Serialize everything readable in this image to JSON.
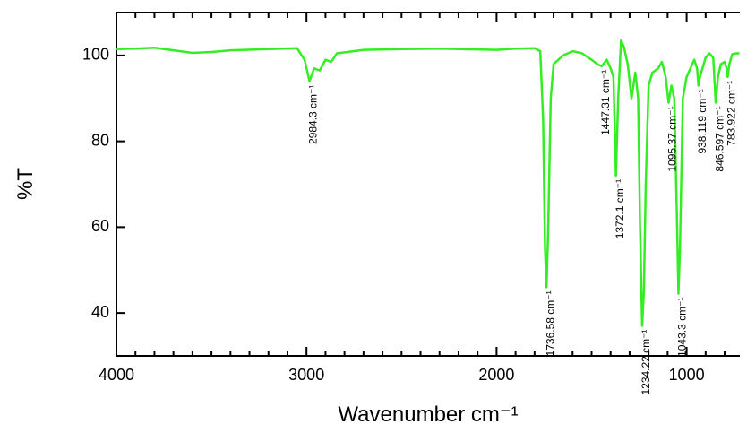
{
  "chart_data": {
    "type": "line",
    "xlabel": "Wavenumber cm⁻¹",
    "ylabel": "%T",
    "xlim": [
      4000,
      720
    ],
    "ylim": [
      30,
      110
    ],
    "xticks": [
      4000,
      3000,
      2000,
      1000
    ],
    "xminorticks": [
      3900,
      3800,
      3700,
      3600,
      3500,
      3400,
      3300,
      3200,
      3100,
      2900,
      2800,
      2700,
      2600,
      2500,
      2400,
      2300,
      2200,
      2100,
      1900,
      1800,
      1700,
      1600,
      1500,
      1400,
      1300,
      1200,
      1100,
      900,
      800
    ],
    "yticks": [
      40,
      60,
      80,
      100
    ],
    "series": [
      {
        "color": "#33ee22",
        "x": [
          4000,
          3900,
          3800,
          3700,
          3600,
          3500,
          3400,
          3200,
          3050,
          3010,
          2984,
          2960,
          2930,
          2900,
          2870,
          2840,
          2700,
          2500,
          2300,
          2100,
          2000,
          1900,
          1800,
          1770,
          1755,
          1745,
          1737,
          1728,
          1715,
          1700,
          1650,
          1600,
          1550,
          1500,
          1470,
          1447,
          1420,
          1400,
          1385,
          1372,
          1360,
          1345,
          1330,
          1310,
          1290,
          1270,
          1255,
          1245,
          1234,
          1225,
          1215,
          1200,
          1180,
          1150,
          1130,
          1110,
          1095,
          1080,
          1065,
          1050,
          1043,
          1035,
          1020,
          1000,
          980,
          960,
          945,
          938,
          930,
          900,
          880,
          860,
          847,
          835,
          820,
          800,
          790,
          784,
          775,
          760,
          740,
          722
        ],
        "values": [
          101.5,
          101.6,
          101.8,
          101.2,
          100.6,
          100.8,
          101.2,
          101.5,
          101.7,
          99,
          94,
          97,
          96.5,
          99,
          98.5,
          100.5,
          101.3,
          101.5,
          101.6,
          101.4,
          101.3,
          101.6,
          101.7,
          101,
          85,
          55,
          46,
          60,
          90,
          98,
          100,
          101,
          100.5,
          99,
          98,
          97.5,
          99,
          97,
          95,
          72,
          90,
          103.5,
          102,
          98,
          90,
          96,
          90,
          60,
          37,
          45,
          70,
          93,
          96,
          97,
          98.5,
          95,
          89,
          93,
          90,
          60,
          44.5,
          55,
          90,
          95,
          97,
          99,
          97,
          93,
          95,
          99.5,
          100.5,
          99.5,
          89,
          95,
          98,
          98.5,
          97,
          95,
          98,
          100.3,
          100.5,
          100.5
        ]
      }
    ],
    "annotations": [
      {
        "text": "2984.3 cm⁻¹",
        "x": 2984.3,
        "y": 94
      },
      {
        "text": "1736.58 cm⁻¹",
        "x": 1736.58,
        "y": 46
      },
      {
        "text": "1447.31 cm⁻¹",
        "x": 1447.31,
        "y": 97.5
      },
      {
        "text": "1372.1 cm⁻¹",
        "x": 1372.1,
        "y": 72
      },
      {
        "text": "1234.22 cm⁻¹",
        "x": 1234.22,
        "y": 37
      },
      {
        "text": "1095.37 cm⁻¹",
        "x": 1095.37,
        "y": 89
      },
      {
        "text": "1043.3 cm⁻¹",
        "x": 1043.3,
        "y": 44.5
      },
      {
        "text": "938.119 cm⁻¹",
        "x": 938.119,
        "y": 93
      },
      {
        "text": "846.597 cm⁻¹",
        "x": 846.597,
        "y": 89
      },
      {
        "text": "783.922 cm⁻¹",
        "x": 783.922,
        "y": 95
      }
    ]
  }
}
